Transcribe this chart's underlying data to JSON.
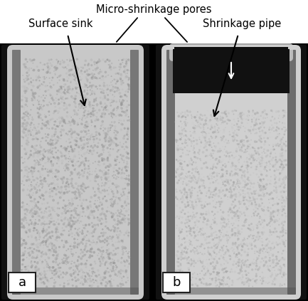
{
  "figure_width": 4.33,
  "figure_height": 4.23,
  "dpi": 100,
  "bg_color": "#ffffff",
  "outer_bg": "#000000",
  "annotations": {
    "micro_shrinkage_label": "Micro-shrinkage pores",
    "surface_sink_label": "Surface sink",
    "shrinkage_pipe_label": "Shrinkage pipe",
    "font_size": 10.5,
    "text_color": "#000000"
  },
  "panel_a": {
    "label": "a",
    "img_color": "#d4d4d4",
    "edge_color": "#111111",
    "border_color": "#000000"
  },
  "panel_b": {
    "label": "b",
    "img_color": "#d8d8d8",
    "edge_color": "#111111",
    "border_color": "#000000"
  }
}
